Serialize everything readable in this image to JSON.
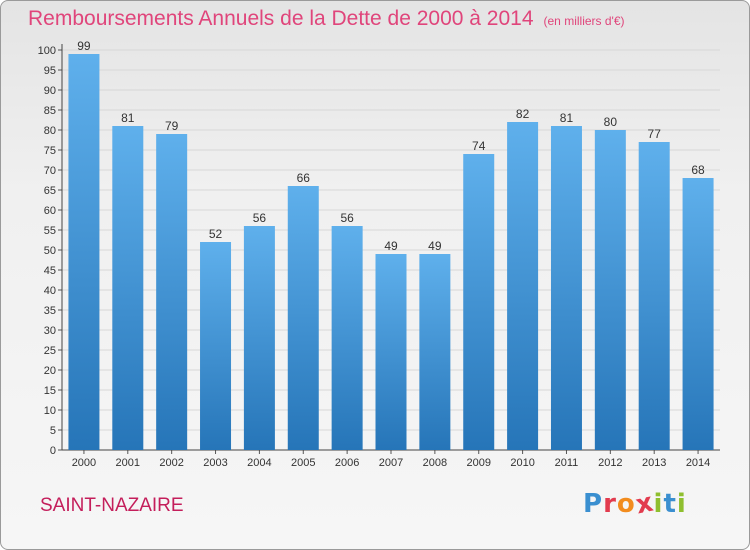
{
  "chart_data": {
    "type": "bar",
    "title": "Remboursements Annuels de la Dette de 2000 à 2014",
    "subtitle": "(en milliers d'€)",
    "categories": [
      "2000",
      "2001",
      "2002",
      "2003",
      "2004",
      "2005",
      "2006",
      "2007",
      "2008",
      "2009",
      "2010",
      "2011",
      "2012",
      "2013",
      "2014"
    ],
    "values": [
      99,
      81,
      79,
      52,
      56,
      66,
      56,
      49,
      49,
      74,
      82,
      81,
      80,
      77,
      68
    ],
    "ylim": [
      0,
      100
    ],
    "ytick_step": 5,
    "xlabel": "",
    "ylabel": "",
    "grid": true,
    "bar_color": "#3e92d6"
  },
  "footer": {
    "city": "SAINT-NAZAIRE",
    "logo": {
      "text": "Proxiti",
      "letter_colors": [
        "#3a8fd0",
        "#e23b4e",
        "#f28c1e",
        "#e23b4e",
        "#8fbf2f",
        "#3a8fd0",
        "#8fbf2f"
      ]
    }
  }
}
